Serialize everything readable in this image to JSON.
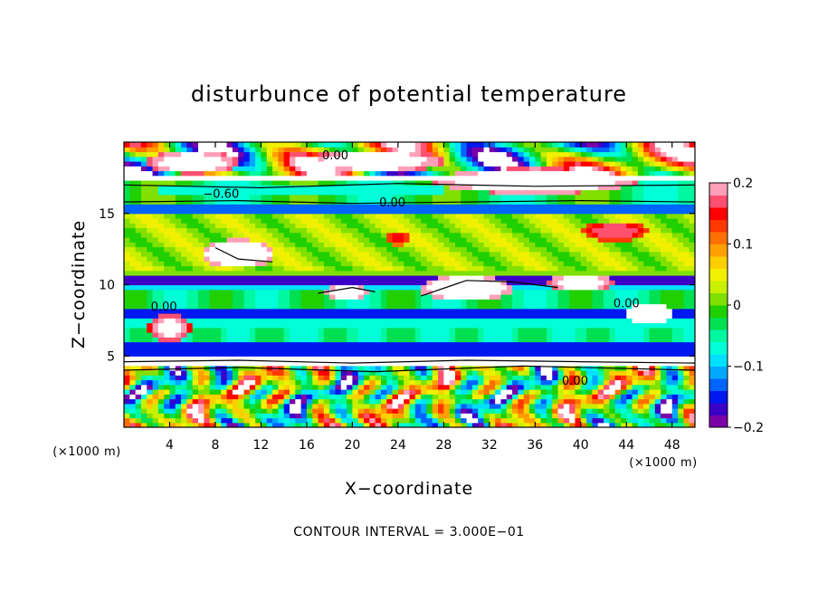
{
  "chart_data": {
    "type": "heatmap",
    "title": "disturbunce of potential temperature",
    "xlabel": "X−coordinate",
    "ylabel": "Z−coordinate",
    "x_unit": "(×1000 m)",
    "y_unit": "(×1000 m)",
    "xlim": [
      0,
      50
    ],
    "ylim": [
      0,
      20
    ],
    "x_ticks": [
      4,
      8,
      12,
      16,
      20,
      24,
      28,
      32,
      36,
      40,
      44,
      48
    ],
    "y_ticks": [
      5,
      10,
      15
    ],
    "colorbar": {
      "range": [
        -0.2,
        0.2
      ],
      "ticks": [
        0.2,
        0.1,
        0,
        -0.1,
        -0.2
      ],
      "tick_labels": [
        "0.2",
        "0.1",
        "0",
        "−0.1",
        "−0.2"
      ],
      "colors": [
        "#7a00a8",
        "#3a00c8",
        "#0018f0",
        "#0064ff",
        "#00a8ff",
        "#00e0ff",
        "#00ffd8",
        "#00f8a0",
        "#00e050",
        "#20d000",
        "#80e000",
        "#c8f000",
        "#f0f000",
        "#ffd000",
        "#ffa000",
        "#ff7000",
        "#ff3800",
        "#ff0000",
        "#ff5070",
        "#ffa0b8"
      ]
    },
    "contour_labels": [
      {
        "text": "−0.60",
        "x": 8.5,
        "z": 16.1
      },
      {
        "text": "0.00",
        "x": 23.5,
        "z": 15.5
      },
      {
        "text": "0.00",
        "x": 44.0,
        "z": 8.4
      },
      {
        "text": "0.00",
        "x": 39.5,
        "z": 3.0
      },
      {
        "text": "0.00",
        "x": 3.5,
        "z": 8.2
      },
      {
        "text": "0.00",
        "x": 18.5,
        "z": 18.8
      }
    ],
    "contour_interval_text": "CONTOUR INTERVAL = 3.000E−01",
    "grid": false,
    "legend": "colorbar-right"
  }
}
